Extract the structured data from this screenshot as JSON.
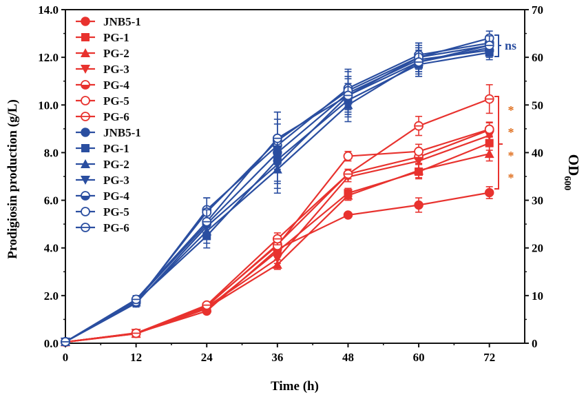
{
  "chart_data": {
    "type": "line",
    "title": "",
    "xlabel": "Time (h)",
    "ylabel_left": "Prodigiosin production (g/L)",
    "ylabel_right_main": "OD",
    "ylabel_right_sub": "600",
    "x": [
      0,
      12,
      24,
      36,
      48,
      60,
      72
    ],
    "x_ticks": [
      "0",
      "12",
      "24",
      "36",
      "48",
      "60",
      "72"
    ],
    "x_range": [
      0,
      78
    ],
    "y_left_range": [
      0,
      14
    ],
    "y_left_ticks": [
      "0.0",
      "2.0",
      "4.0",
      "6.0",
      "8.0",
      "10.0",
      "12.0",
      "14.0"
    ],
    "y_right_range": [
      0,
      70
    ],
    "y_right_ticks": [
      "0",
      "10",
      "20",
      "30",
      "40",
      "50",
      "60",
      "70"
    ],
    "colors": {
      "production": "#e8322e",
      "od": "#2a4ea0",
      "star": "#e07020",
      "axis": "#111111"
    },
    "production_series": [
      {
        "name": "JNB5-1",
        "marker": "circle",
        "values": [
          0.05,
          0.42,
          1.35,
          3.95,
          5.38,
          5.8,
          6.32
        ],
        "errors": [
          0,
          0.05,
          0.05,
          0.2,
          0.1,
          0.3,
          0.25
        ]
      },
      {
        "name": "PG-1",
        "marker": "square",
        "values": [
          0.05,
          0.4,
          1.45,
          3.85,
          6.3,
          7.2,
          8.4
        ],
        "errors": [
          0,
          0.05,
          0.05,
          0.2,
          0.2,
          0.3,
          0.3
        ]
      },
      {
        "name": "PG-2",
        "marker": "triangle-up",
        "values": [
          0.05,
          0.4,
          1.48,
          3.3,
          6.2,
          7.25,
          7.95
        ],
        "errors": [
          0,
          0.05,
          0.05,
          0.2,
          0.2,
          0.3,
          0.3
        ]
      },
      {
        "name": "PG-3",
        "marker": "triangle-down",
        "values": [
          0.05,
          0.43,
          1.52,
          3.55,
          6.98,
          7.65,
          8.72
        ],
        "errors": [
          0,
          0.05,
          0.05,
          0.2,
          0.2,
          0.3,
          0.3
        ]
      },
      {
        "name": "PG-4",
        "marker": "half-circle",
        "values": [
          0.05,
          0.42,
          1.55,
          4.15,
          7.1,
          7.82,
          8.95
        ],
        "errors": [
          0,
          0.05,
          0.05,
          0.2,
          0.2,
          0.3,
          0.3
        ]
      },
      {
        "name": "PG-5",
        "marker": "open-circle",
        "values": [
          0.05,
          0.42,
          1.58,
          4.1,
          7.85,
          8.05,
          8.98
        ],
        "errors": [
          0,
          0.05,
          0.05,
          0.2,
          0.2,
          0.3,
          0.3
        ]
      },
      {
        "name": "PG-6",
        "marker": "split-circle",
        "values": [
          0.05,
          0.42,
          1.6,
          4.38,
          7.1,
          9.12,
          10.25
        ],
        "errors": [
          0,
          0.05,
          0.05,
          0.25,
          0.2,
          0.4,
          0.6
        ]
      }
    ],
    "od_series": [
      {
        "name": "JNB5-1",
        "marker": "circle",
        "values": [
          0.3,
          9.0,
          25.0,
          40.0,
          52.5,
          59.5,
          61.5
        ],
        "errors": [
          0,
          0.8,
          2.5,
          6.0,
          3.5,
          2.5,
          1.5
        ]
      },
      {
        "name": "PG-1",
        "marker": "square",
        "values": [
          0.3,
          8.8,
          22.5,
          38.5,
          51.0,
          58.5,
          61.0
        ],
        "errors": [
          0,
          0.8,
          2.5,
          5.0,
          3.5,
          2.5,
          1.5
        ]
      },
      {
        "name": "PG-2",
        "marker": "triangle-up",
        "values": [
          0.3,
          8.6,
          23.5,
          36.5,
          50.0,
          59.0,
          62.0
        ],
        "errors": [
          0,
          0.8,
          2.5,
          5.0,
          3.5,
          2.5,
          1.5
        ]
      },
      {
        "name": "PG-3",
        "marker": "triangle-down",
        "values": [
          0.3,
          8.4,
          24.5,
          37.5,
          52.0,
          60.0,
          62.5
        ],
        "errors": [
          0,
          0.8,
          2.5,
          5.0,
          3.5,
          2.5,
          1.5
        ]
      },
      {
        "name": "PG-4",
        "marker": "half-circle",
        "values": [
          0.3,
          8.5,
          28.0,
          41.5,
          53.5,
          60.5,
          63.0
        ],
        "errors": [
          0,
          0.8,
          2.5,
          5.5,
          3.5,
          2.5,
          1.5
        ]
      },
      {
        "name": "PG-5",
        "marker": "open-circle",
        "values": [
          0.3,
          8.7,
          27.5,
          42.5,
          53.0,
          60.0,
          64.0
        ],
        "errors": [
          0,
          0.8,
          3.0,
          6.0,
          4.5,
          3.0,
          1.5
        ]
      },
      {
        "name": "PG-6",
        "marker": "split-circle",
        "values": [
          0.3,
          9.2,
          25.5,
          43.0,
          52.0,
          59.0,
          62.5
        ],
        "errors": [
          0,
          0.8,
          2.5,
          5.5,
          4.0,
          3.0,
          2.0
        ]
      }
    ],
    "annotations": {
      "ns": "ns",
      "star": "*"
    },
    "legend_position": "top-left"
  }
}
